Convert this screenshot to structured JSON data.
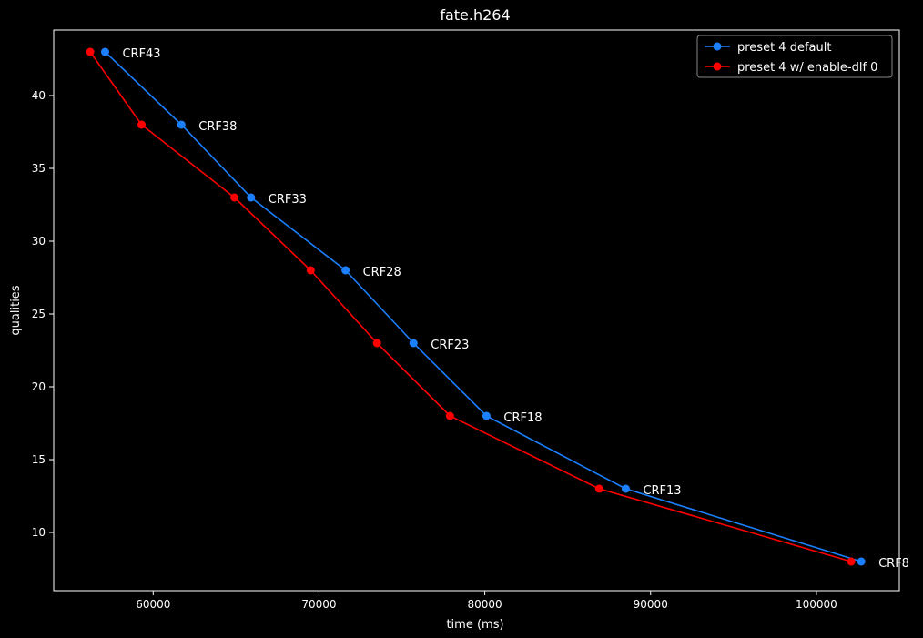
{
  "chart_data": {
    "type": "line",
    "title": "fate.h264",
    "xlabel": "time (ms)",
    "ylabel": "qualities",
    "xlim": [
      54000,
      105000
    ],
    "ylim": [
      6,
      44.5
    ],
    "xticks": [
      60000,
      70000,
      80000,
      90000,
      100000
    ],
    "xtick_labels": [
      "60000",
      "70000",
      "80000",
      "90000",
      "100000"
    ],
    "yticks": [
      10,
      15,
      20,
      25,
      30,
      35,
      40
    ],
    "ytick_labels": [
      "10",
      "15",
      "20",
      "25",
      "30",
      "35",
      "40"
    ],
    "grid": false,
    "legend_position": "top-right",
    "series": [
      {
        "name": "preset 4 default",
        "color": "#1a80ff",
        "x": [
          57100,
          61700,
          65900,
          71600,
          75700,
          80100,
          88500,
          102700
        ],
        "y": [
          43,
          38,
          33,
          28,
          23,
          18,
          13,
          8
        ]
      },
      {
        "name": "preset 4 w/ enable-dlf 0",
        "color": "#ff0000",
        "x": [
          56200,
          59300,
          64900,
          69500,
          73500,
          77900,
          86900,
          102100
        ],
        "y": [
          43,
          38,
          33,
          28,
          23,
          18,
          13,
          8
        ]
      }
    ],
    "annotations": [
      {
        "text": "CRF43",
        "x": 57100,
        "y": 43
      },
      {
        "text": "CRF38",
        "x": 61700,
        "y": 38
      },
      {
        "text": "CRF33",
        "x": 65900,
        "y": 33
      },
      {
        "text": "CRF28",
        "x": 71600,
        "y": 28
      },
      {
        "text": "CRF23",
        "x": 75700,
        "y": 23
      },
      {
        "text": "CRF18",
        "x": 80100,
        "y": 18
      },
      {
        "text": "CRF13",
        "x": 88500,
        "y": 13
      },
      {
        "text": "CRF8",
        "x": 102700,
        "y": 8
      }
    ]
  }
}
